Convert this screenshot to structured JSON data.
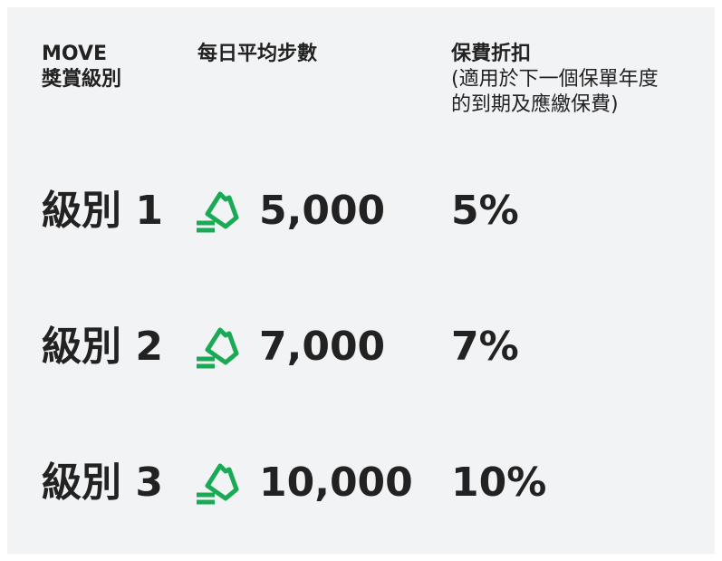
{
  "table": {
    "headers": [
      [
        "MOVE",
        "獎賞級別"
      ],
      [
        "每日平均步數"
      ],
      [
        "保費折扣",
        "(適用於下一個保單年度",
        "的到期及應繳保費)"
      ]
    ],
    "rows": [
      [
        "級別 1",
        "5,000",
        "5%"
      ],
      [
        "級別 2",
        "7,000",
        "7%"
      ],
      [
        "級別 3",
        "10,000",
        "10%"
      ]
    ]
  }
}
